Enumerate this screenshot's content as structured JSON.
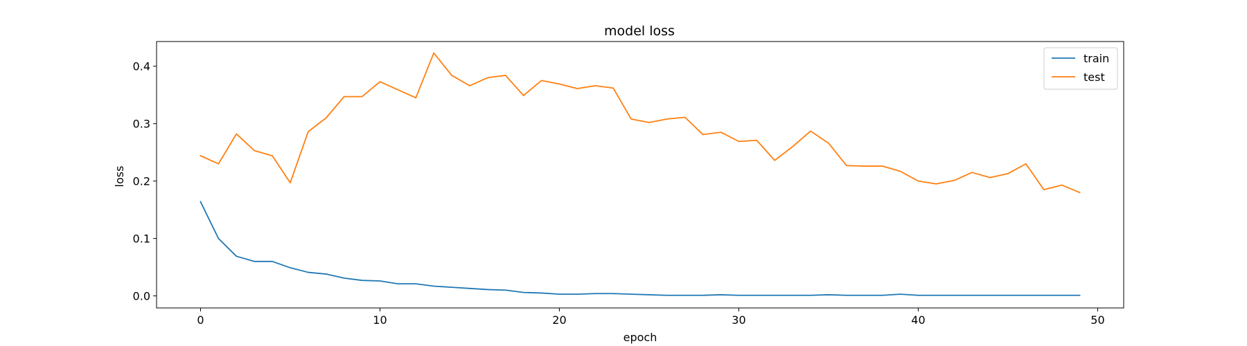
{
  "chart_data": {
    "type": "line",
    "title": "model loss",
    "xlabel": "epoch",
    "ylabel": "loss",
    "xlim": [
      -2.45,
      51.45
    ],
    "ylim": [
      -0.021,
      0.443
    ],
    "xticks": [
      0,
      10,
      20,
      30,
      40,
      50
    ],
    "yticks": [
      0.0,
      0.1,
      0.2,
      0.3,
      0.4
    ],
    "ytick_labels": [
      "0.0",
      "0.1",
      "0.2",
      "0.3",
      "0.4"
    ],
    "grid": false,
    "legend_position": "top-right",
    "x": [
      0,
      1,
      2,
      3,
      4,
      5,
      6,
      7,
      8,
      9,
      10,
      11,
      12,
      13,
      14,
      15,
      16,
      17,
      18,
      19,
      20,
      21,
      22,
      23,
      24,
      25,
      26,
      27,
      28,
      29,
      30,
      31,
      32,
      33,
      34,
      35,
      36,
      37,
      38,
      39,
      40,
      41,
      42,
      43,
      44,
      45,
      46,
      47,
      48,
      49
    ],
    "series": [
      {
        "name": "train",
        "color": "#1f77b4",
        "values": [
          0.164,
          0.1,
          0.069,
          0.06,
          0.06,
          0.049,
          0.041,
          0.038,
          0.031,
          0.027,
          0.026,
          0.021,
          0.021,
          0.017,
          0.015,
          0.013,
          0.011,
          0.01,
          0.006,
          0.005,
          0.003,
          0.003,
          0.004,
          0.004,
          0.003,
          0.002,
          0.001,
          0.001,
          0.001,
          0.002,
          0.001,
          0.001,
          0.001,
          0.001,
          0.001,
          0.002,
          0.001,
          0.001,
          0.001,
          0.003,
          0.001,
          0.001,
          0.001,
          0.001,
          0.001,
          0.001,
          0.001,
          0.001,
          0.001,
          0.001
        ]
      },
      {
        "name": "test",
        "color": "#ff7f0e",
        "values": [
          0.244,
          0.23,
          0.282,
          0.253,
          0.244,
          0.197,
          0.286,
          0.31,
          0.347,
          0.347,
          0.373,
          0.359,
          0.345,
          0.423,
          0.384,
          0.366,
          0.38,
          0.384,
          0.349,
          0.375,
          0.369,
          0.361,
          0.366,
          0.362,
          0.308,
          0.302,
          0.308,
          0.311,
          0.281,
          0.285,
          0.269,
          0.271,
          0.236,
          0.26,
          0.287,
          0.266,
          0.227,
          0.226,
          0.226,
          0.217,
          0.2,
          0.195,
          0.201,
          0.215,
          0.206,
          0.213,
          0.23,
          0.185,
          0.193,
          0.18
        ]
      }
    ]
  }
}
